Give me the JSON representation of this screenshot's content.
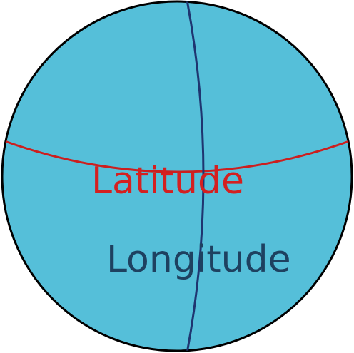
{
  "diagram": {
    "labels": {
      "latitude": "Latitude",
      "longitude": "Longitude"
    },
    "colors": {
      "sphere_fill": "#55BFD9",
      "sphere_outline": "#000000",
      "latitude_line": "#CC1F1F",
      "longitude_line": "#1F3570",
      "latitude_text": "#D42020",
      "longitude_text": "#1E4160"
    }
  }
}
